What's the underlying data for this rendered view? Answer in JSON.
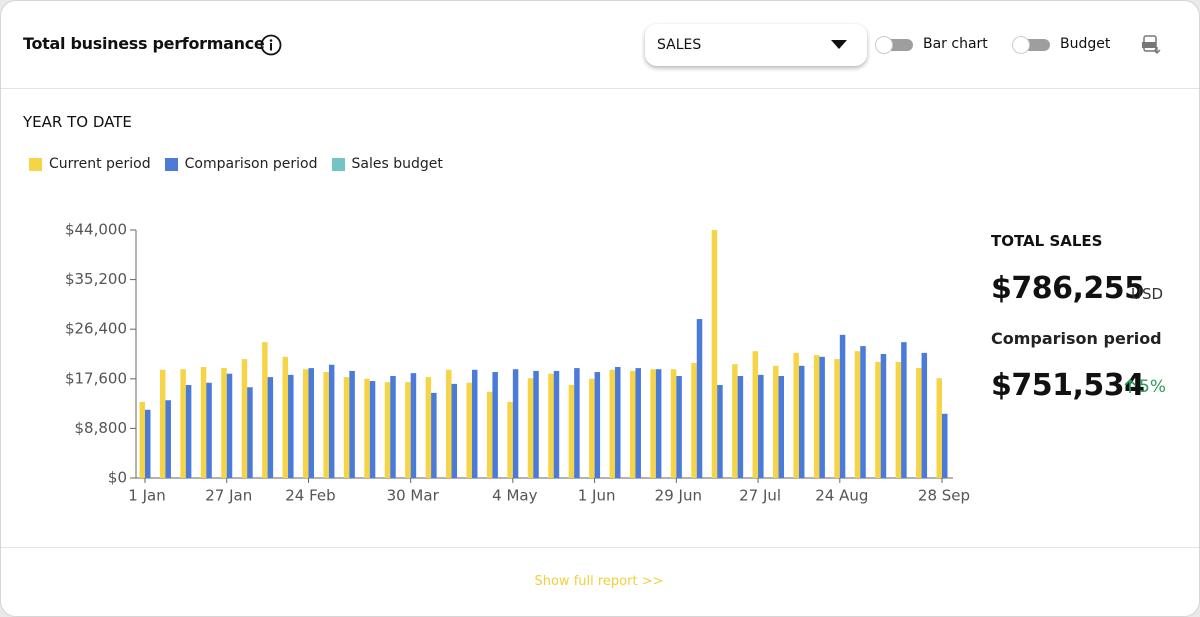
{
  "header": {
    "title": "Total business performance",
    "dropdown": "SALES",
    "toggles": [
      "Bar chart",
      "Budget"
    ]
  },
  "subtitle": "YEAR TO DATE",
  "chart_data": {
    "type": "bar",
    "categories": [
      "1 Jan",
      null,
      null,
      null,
      "27 Jan",
      null,
      null,
      null,
      "24 Feb",
      null,
      null,
      null,
      null,
      "30 Mar",
      null,
      null,
      null,
      null,
      "4 May",
      null,
      null,
      null,
      "1 Jun",
      null,
      null,
      null,
      "29 Jun",
      null,
      null,
      null,
      "27 Jul",
      null,
      null,
      null,
      "24 Aug",
      null,
      null,
      null,
      null,
      "28 Sep"
    ],
    "series": [
      {
        "name": "Current period",
        "color": "#f5d547",
        "values": [
          13500,
          19200,
          19300,
          19700,
          19500,
          21100,
          24100,
          21500,
          19300,
          18800,
          17900,
          17600,
          17000,
          17000,
          17900,
          19200,
          16900,
          15300,
          13500,
          17700,
          18500,
          16500,
          17600,
          19200,
          19000,
          19300,
          19300,
          20400,
          44000,
          20200,
          22500,
          19900,
          22200,
          21800,
          21100,
          22500,
          20600,
          20600,
          19500,
          17700
        ]
      },
      {
        "name": "Comparison period",
        "color": "#4a7bd8",
        "values": [
          12100,
          13800,
          16500,
          16900,
          18500,
          16100,
          17900,
          18300,
          19500,
          20100,
          19000,
          17200,
          18100,
          18600,
          15100,
          16700,
          19200,
          18800,
          19300,
          19000,
          19000,
          19500,
          18800,
          19700,
          19500,
          19300,
          18100,
          28200,
          16500,
          18100,
          18300,
          18100,
          19900,
          21500,
          25400,
          23400,
          22000,
          24100,
          22200,
          11400
        ]
      },
      {
        "name": "Sales budget",
        "color": "#74c4c6",
        "values": [
          null,
          null,
          null,
          null,
          null,
          null,
          null,
          null,
          null,
          null,
          null,
          null,
          null,
          null,
          null,
          null,
          null,
          null,
          null,
          null,
          null,
          null,
          null,
          null,
          null,
          null,
          null,
          null,
          null,
          null,
          null,
          null,
          null,
          null,
          null,
          null,
          null,
          null,
          null,
          null
        ]
      }
    ],
    "ylim": [
      0,
      44000
    ],
    "yticks": [
      {
        "value": 0,
        "label": "$0"
      },
      {
        "value": 8800,
        "label": "$8,800"
      },
      {
        "value": 17600,
        "label": "$17,600"
      },
      {
        "value": 26400,
        "label": "$26,400"
      },
      {
        "value": 35200,
        "label": "$35,200"
      },
      {
        "value": 44000,
        "label": "$44,000"
      }
    ]
  },
  "summary": {
    "total_label": "TOTAL SALES",
    "total_value": "$786,255",
    "currency": "USD",
    "comparison_label": "Comparison period",
    "comparison_value": "$751,534",
    "change": "5%"
  },
  "footer": {
    "link": "Show full report >>"
  }
}
